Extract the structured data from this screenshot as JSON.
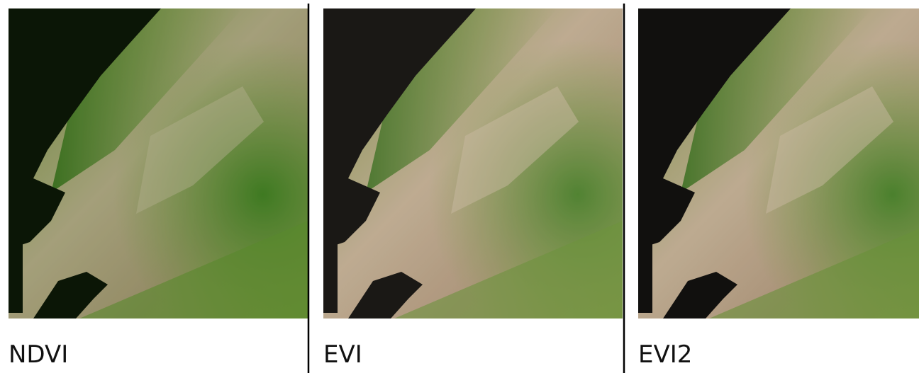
{
  "panels": [
    {
      "label": "NDVI"
    },
    {
      "label": "EVI"
    },
    {
      "label": "EVI2"
    }
  ]
}
